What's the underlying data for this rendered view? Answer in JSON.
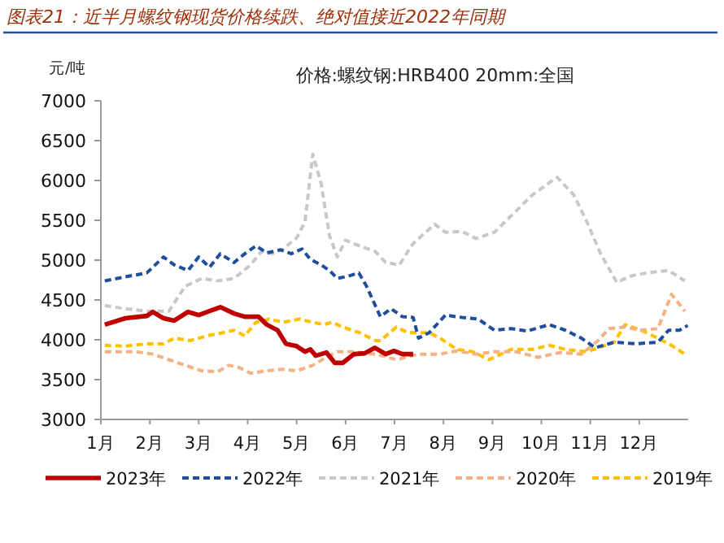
{
  "chart_data": {
    "type": "line",
    "title": "图表21：近半月螺纹钢现货价格续跌、绝对值接近2022年同期",
    "subtitle": "价格:螺纹钢:HRB400 20mm:全国",
    "ylabel": "元/吨",
    "xlim": [
      1,
      13
    ],
    "ylim": [
      3000,
      7000
    ],
    "xticks": [
      {
        "value": 1,
        "label": "1月"
      },
      {
        "value": 2,
        "label": "2月"
      },
      {
        "value": 3,
        "label": "3月"
      },
      {
        "value": 4,
        "label": "4月"
      },
      {
        "value": 5,
        "label": "5月"
      },
      {
        "value": 6,
        "label": "6月"
      },
      {
        "value": 7,
        "label": "7月"
      },
      {
        "value": 8,
        "label": "8月"
      },
      {
        "value": 9,
        "label": "9月"
      },
      {
        "value": 10,
        "label": "10月"
      },
      {
        "value": 11,
        "label": "11月"
      },
      {
        "value": 12,
        "label": "12月"
      }
    ],
    "yticks": [
      3000,
      3500,
      4000,
      4500,
      5000,
      5500,
      6000,
      6500,
      7000
    ],
    "legend": "bottom",
    "grid": false,
    "series": [
      {
        "name": "2023年",
        "color": "#c00000",
        "line_style": "solid",
        "x": [
          1.08,
          1.5,
          1.94,
          2.06,
          2.28,
          2.5,
          2.78,
          3.0,
          3.22,
          3.44,
          3.72,
          3.94,
          4.22,
          4.39,
          4.61,
          4.78,
          5.0,
          5.17,
          5.28,
          5.39,
          5.61,
          5.78,
          5.94,
          6.17,
          6.39,
          6.6,
          6.82,
          6.99,
          7.16,
          7.38
        ],
        "values": [
          4190,
          4270,
          4300,
          4350,
          4270,
          4240,
          4350,
          4310,
          4360,
          4410,
          4330,
          4290,
          4290,
          4190,
          4120,
          3950,
          3920,
          3850,
          3880,
          3800,
          3840,
          3710,
          3710,
          3820,
          3830,
          3900,
          3820,
          3860,
          3820,
          3820
        ]
      },
      {
        "name": "2022年",
        "color": "#1f4e9c",
        "line_style": "dashed",
        "x": [
          1.08,
          1.5,
          1.94,
          2.28,
          2.5,
          2.78,
          3.0,
          3.22,
          3.44,
          3.72,
          3.94,
          4.17,
          4.39,
          4.67,
          4.89,
          5.11,
          5.28,
          5.5,
          5.67,
          5.83,
          6.06,
          6.27,
          6.43,
          6.71,
          6.93,
          7.16,
          7.38,
          7.49,
          7.71,
          8.04,
          8.38,
          8.71,
          9.04,
          9.38,
          9.71,
          10.16,
          10.49,
          10.82,
          11.1,
          11.49,
          11.93,
          12.38,
          12.6,
          12.82,
          12.99
        ],
        "values": [
          4740,
          4790,
          4840,
          5040,
          4940,
          4870,
          5040,
          4910,
          5080,
          4970,
          5080,
          5180,
          5090,
          5130,
          5080,
          5140,
          5010,
          4940,
          4870,
          4770,
          4800,
          4840,
          4670,
          4290,
          4390,
          4290,
          4280,
          4020,
          4090,
          4310,
          4280,
          4260,
          4120,
          4140,
          4110,
          4190,
          4120,
          4020,
          3900,
          3970,
          3950,
          3970,
          4120,
          4120,
          4180
        ]
      },
      {
        "name": "2021年",
        "color": "#c8c8c8",
        "line_style": "dashed",
        "x": [
          1.08,
          1.5,
          1.94,
          2.39,
          2.72,
          3.06,
          3.39,
          3.72,
          4.06,
          4.28,
          4.5,
          4.72,
          5.0,
          5.17,
          5.33,
          5.5,
          5.67,
          5.83,
          6.0,
          6.28,
          6.6,
          6.82,
          7.1,
          7.38,
          7.82,
          8.04,
          8.38,
          8.66,
          9.04,
          9.49,
          9.82,
          10.32,
          10.66,
          10.93,
          11.21,
          11.54,
          11.82,
          12.16,
          12.6,
          12.93
        ],
        "values": [
          4430,
          4390,
          4360,
          4360,
          4670,
          4770,
          4740,
          4770,
          4940,
          5110,
          5080,
          5140,
          5280,
          5480,
          6330,
          5960,
          5310,
          5040,
          5250,
          5180,
          5110,
          4970,
          4940,
          5210,
          5450,
          5350,
          5360,
          5270,
          5350,
          5620,
          5820,
          6040,
          5820,
          5480,
          5080,
          4720,
          4800,
          4840,
          4870,
          4740
        ]
      },
      {
        "name": "2020年",
        "color": "#f4b183",
        "line_style": "dashed",
        "x": [
          1.08,
          1.72,
          2.06,
          2.39,
          2.72,
          3.06,
          3.39,
          3.61,
          3.83,
          4.06,
          4.39,
          4.72,
          5.0,
          5.33,
          5.61,
          5.83,
          6.17,
          6.6,
          7.04,
          7.49,
          7.93,
          8.27,
          8.66,
          9.04,
          9.49,
          9.93,
          10.38,
          10.82,
          11.16,
          11.38,
          11.71,
          12.04,
          12.38,
          12.66,
          12.93
        ],
        "values": [
          3850,
          3850,
          3820,
          3750,
          3680,
          3610,
          3600,
          3680,
          3650,
          3580,
          3610,
          3630,
          3610,
          3680,
          3780,
          3850,
          3850,
          3820,
          3750,
          3820,
          3820,
          3860,
          3820,
          3850,
          3850,
          3780,
          3840,
          3820,
          3990,
          4140,
          4160,
          4120,
          4140,
          4570,
          4360
        ]
      },
      {
        "name": "2019年",
        "color": "#ffc000",
        "line_style": "dashed",
        "x": [
          1.08,
          1.5,
          1.94,
          2.28,
          2.5,
          2.83,
          3.17,
          3.5,
          3.72,
          3.94,
          4.17,
          4.44,
          4.72,
          5.06,
          5.33,
          5.56,
          5.72,
          5.94,
          6.28,
          6.61,
          6.71,
          7.04,
          7.27,
          7.71,
          7.93,
          8.27,
          8.6,
          8.93,
          9.38,
          9.82,
          10.16,
          10.49,
          10.93,
          11.49,
          11.71,
          12.04,
          12.38,
          12.66,
          12.93
        ],
        "values": [
          3930,
          3920,
          3950,
          3950,
          4020,
          3990,
          4050,
          4090,
          4120,
          4050,
          4220,
          4260,
          4220,
          4260,
          4220,
          4190,
          4220,
          4160,
          4090,
          3990,
          3990,
          4160,
          4090,
          4090,
          4020,
          3880,
          3850,
          3750,
          3880,
          3880,
          3930,
          3880,
          3850,
          3970,
          4190,
          4120,
          4020,
          3930,
          3820
        ]
      }
    ]
  }
}
